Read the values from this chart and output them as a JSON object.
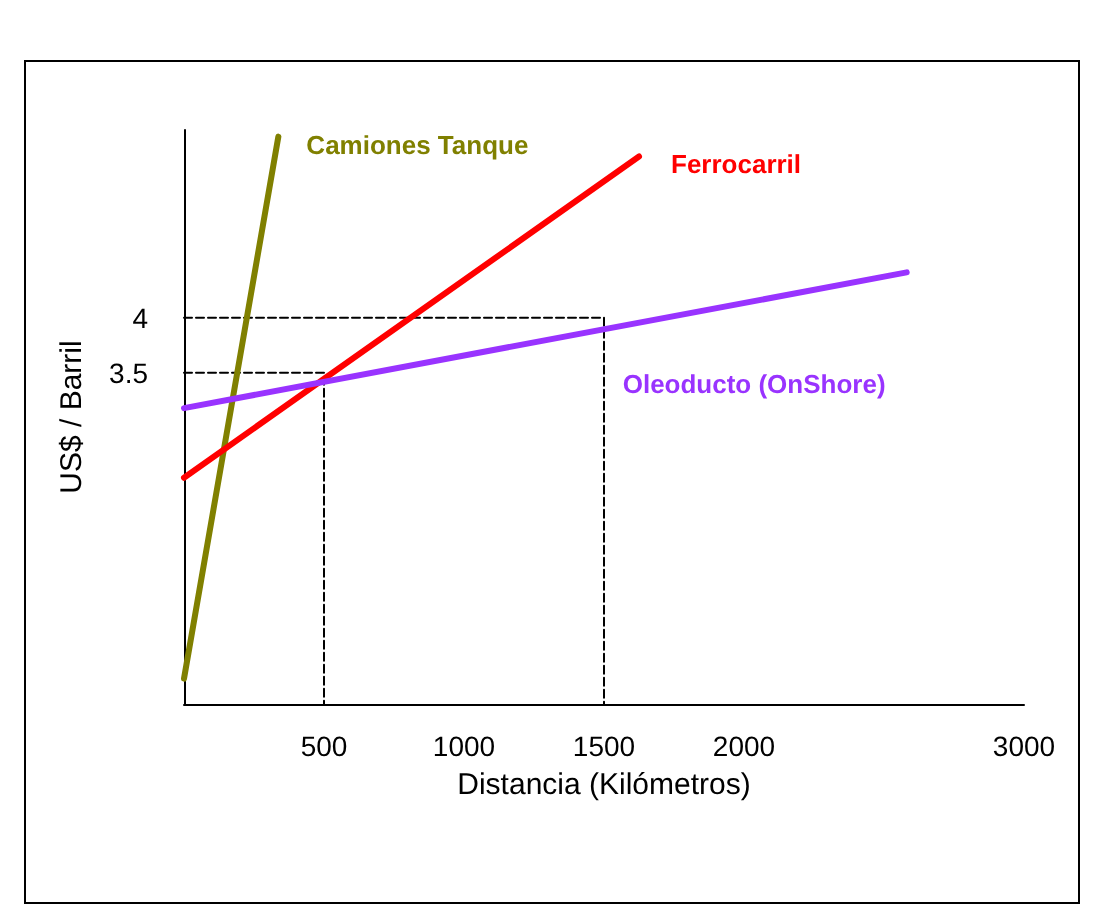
{
  "chart_data": {
    "type": "line",
    "xlabel": "Distancia (Kilómetros)",
    "ylabel": "US$ / Barril",
    "xlim": [
      0,
      3000
    ],
    "xticks": [
      500,
      1000,
      1500,
      2000,
      3000
    ],
    "ylim": [
      0.5,
      5.7
    ],
    "yticks": [
      3.5,
      4
    ],
    "grid": false,
    "legend": false,
    "marker": "none",
    "line_style": "solid",
    "series": [
      {
        "name": "Camiones Tanque",
        "color": "#808000",
        "x": [
          0,
          337
        ],
        "values": [
          0.73,
          5.64
        ]
      },
      {
        "name": "Ferrocarril",
        "color": "#ff0000",
        "x": [
          0,
          1625
        ],
        "values": [
          2.55,
          5.46
        ]
      },
      {
        "name": "Oleoducto (OnShore)",
        "color": "#9933ff",
        "x": [
          0,
          2581
        ],
        "values": [
          3.18,
          4.41
        ]
      },
      {
        "color": "#000000",
        "x": [
          0,
          1500,
          1500
        ],
        "values": [
          4,
          4,
          0.5
        ],
        "line_style": "dashed"
      },
      {
        "color": "#000000",
        "x": [
          0,
          500,
          500
        ],
        "values": [
          3.5,
          3.5,
          0.5
        ],
        "line_style": "dashed"
      }
    ]
  }
}
